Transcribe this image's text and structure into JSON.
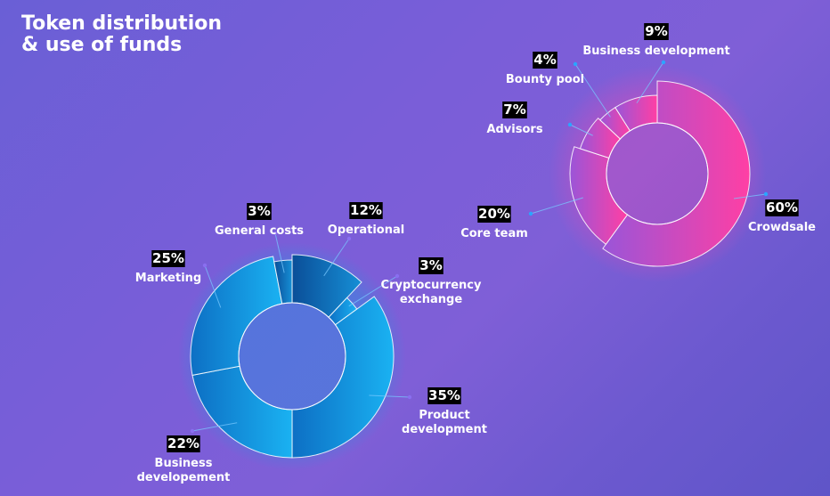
{
  "title": {
    "line1": "Token distribution",
    "line2": "& use of funds"
  },
  "chart_data": [
    {
      "type": "pie",
      "title": "Token distribution",
      "color": "#ff3fa4",
      "slices": [
        {
          "label": [
            "Crowdsale"
          ],
          "value": 60,
          "value_label": "60%"
        },
        {
          "label": [
            "Core team"
          ],
          "value": 20,
          "value_label": "20%"
        },
        {
          "label": [
            "Advisors"
          ],
          "value": 7,
          "value_label": "7%"
        },
        {
          "label": [
            "Bounty pool"
          ],
          "value": 4,
          "value_label": "4%"
        },
        {
          "label": [
            "Business development"
          ],
          "value": 9,
          "value_label": "9%"
        }
      ]
    },
    {
      "type": "pie",
      "title": "Use of funds",
      "color": "#1aa8ec",
      "slices": [
        {
          "label": [
            "Operational"
          ],
          "value": 12,
          "value_label": "12%"
        },
        {
          "label": [
            "Cryptocurrency",
            "exchange"
          ],
          "value": 3,
          "value_label": "3%"
        },
        {
          "label": [
            "Product",
            "development"
          ],
          "value": 35,
          "value_label": "35%"
        },
        {
          "label": [
            "Business",
            "developement"
          ],
          "value": 22,
          "value_label": "22%"
        },
        {
          "label": [
            "Marketing"
          ],
          "value": 25,
          "value_label": "25%"
        },
        {
          "label": [
            "General costs"
          ],
          "value": 3,
          "value_label": "3%"
        }
      ]
    }
  ]
}
